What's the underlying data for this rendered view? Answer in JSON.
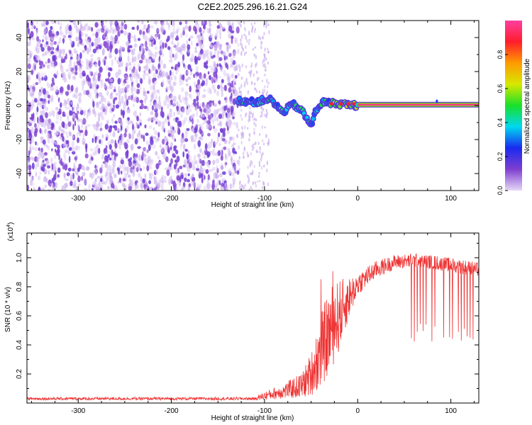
{
  "title": "C2E2.2025.296.16.21.G24",
  "chart_data": [
    {
      "type": "heatmap",
      "xlabel": "Height of straight line (km)",
      "ylabel": "Frequency (Hz)",
      "xlim": [
        -355,
        130
      ],
      "ylim": [
        -50,
        50
      ],
      "x_ticks": [
        -300,
        -200,
        -100,
        0,
        100
      ],
      "y_ticks": [
        -40,
        -20,
        0,
        20,
        40
      ],
      "colorbar": {
        "label": "Normalized spectral amplitude",
        "range": [
          0,
          1
        ],
        "ticks": [
          "0.0",
          "0.2",
          "0.4",
          "0.6",
          "0.8"
        ],
        "colors": [
          "#e6d7f7",
          "#7f3fd0",
          "#1a2af0",
          "#00d8f0",
          "#19e02a",
          "#d6e800",
          "#ff9a00",
          "#ff1d2b",
          "#ff3fa0"
        ]
      },
      "regions": [
        {
          "name": "noise",
          "x": [
            -355,
            -128
          ],
          "freq": [
            -50,
            50
          ],
          "amplitude": 0.15
        },
        {
          "name": "transition",
          "x": [
            -128,
            -95
          ],
          "freq": [
            -50,
            50
          ],
          "amplitude": 0.05
        },
        {
          "name": "track",
          "points": [
            [
              -128,
              3
            ],
            [
              -110,
              2
            ],
            [
              -95,
              4
            ],
            [
              -80,
              -4
            ],
            [
              -70,
              1
            ],
            [
              -60,
              -3
            ],
            [
              -50,
              -12
            ],
            [
              -45,
              -3
            ],
            [
              -38,
              2
            ],
            [
              -20,
              1
            ],
            [
              0,
              0
            ]
          ]
        },
        {
          "name": "carrier",
          "x": [
            0,
            130
          ],
          "freq": 0.5,
          "amplitude": 0.97
        }
      ]
    },
    {
      "type": "line",
      "xlabel": "Height of straight line (km)",
      "ylabel": "SNR (10 * v/v)",
      "y_multiplier": "(x10^4)",
      "y_mult_base": "(x10",
      "y_mult_exp": "4",
      "y_mult_close": ")",
      "xlim": [
        -355,
        130
      ],
      "ylim": [
        0,
        1.17
      ],
      "x_ticks": [
        -300,
        -200,
        -100,
        0,
        100
      ],
      "y_ticks": [
        "0.2",
        "0.4",
        "0.6",
        "0.8",
        "1.0"
      ],
      "series": [
        {
          "name": "SNR",
          "color": "#ee3333",
          "x": [
            -355,
            -200,
            -110,
            -100,
            -80,
            -60,
            -50,
            -40,
            -30,
            -20,
            -10,
            0,
            20,
            40,
            60,
            80,
            100,
            130
          ],
          "mean": [
            0.03,
            0.03,
            0.03,
            0.05,
            0.08,
            0.12,
            0.2,
            0.35,
            0.5,
            0.6,
            0.72,
            0.82,
            0.92,
            0.97,
            0.98,
            0.97,
            0.95,
            0.92
          ],
          "noise": [
            0.01,
            0.01,
            0.01,
            0.03,
            0.05,
            0.09,
            0.15,
            0.25,
            0.3,
            0.25,
            0.15,
            0.08,
            0.06,
            0.05,
            0.05,
            0.05,
            0.05,
            0.05
          ]
        }
      ],
      "dips": {
        "x_range": [
          55,
          130
        ],
        "period": 3,
        "depth_to": 0.4
      }
    }
  ]
}
